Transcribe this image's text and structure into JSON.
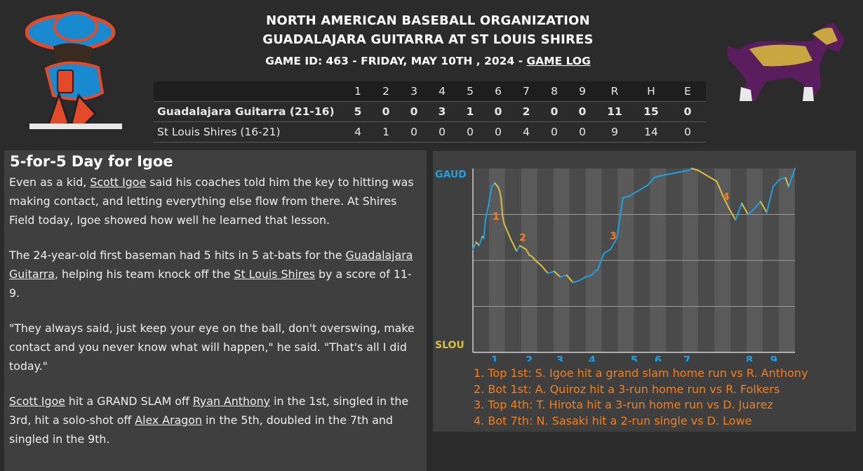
{
  "header": {
    "organization": "NORTH AMERICAN BASEBALL ORGANIZATION",
    "matchup": "GUADALAJARA GUITARRA AT ST LOUIS SHIRES",
    "game_info": "GAME ID: 463 - FRIDAY, MAY 10TH , 2024 - ",
    "game_log_link": "GAME LOG"
  },
  "linescore": {
    "columns": [
      "1",
      "2",
      "3",
      "4",
      "5",
      "6",
      "7",
      "8",
      "9",
      "R",
      "H",
      "E"
    ],
    "teams": [
      {
        "name": "Guadalajara Guitarra (21-16)",
        "scores": [
          "5",
          "0",
          "0",
          "3",
          "1",
          "0",
          "2",
          "0",
          "0",
          "11",
          "15",
          "0"
        ]
      },
      {
        "name": "St Louis Shires (16-21)",
        "scores": [
          "4",
          "1",
          "0",
          "0",
          "0",
          "0",
          "4",
          "0",
          "0",
          "9",
          "14",
          "0"
        ]
      }
    ]
  },
  "story": {
    "headline": "5-for-5 Day for Igoe",
    "p1": {
      "a": "Even as a kid, ",
      "link": "Scott Igoe",
      "b": " said his coaches told him the key to hitting was making contact, and letting everything else flow from there. At Shires Field today, Igoe showed how well he learned that lesson."
    },
    "p2": {
      "a": "The 24-year-old first baseman had 5 hits in 5 at-bats for the ",
      "link1": "Guadalajara Guitarra",
      "b": ", helping his team knock off the ",
      "link2": "St Louis Shires",
      "c": " by a score of 11-9."
    },
    "p3": "\"They always said, just keep your eye on the ball, don't overswing, make contact and you never know what will happen,\" he said. \"That's all I did today.\"",
    "p4": {
      "link1": "Scott Igoe",
      "a": " hit a GRAND SLAM off ",
      "link2": "Ryan Anthony",
      "b": " in the 1st, singled in the 3rd, hit a solo-shot off ",
      "link3": "Alex Aragon",
      "c": " in the 5th, doubled in the 7th and singled in the 9th."
    }
  },
  "chart": {
    "top_label": "GAUD",
    "bottom_label": "SLOU",
    "inning_labels": [
      "1",
      "2",
      "3",
      "4",
      "5",
      "6",
      "7",
      "8",
      "9"
    ],
    "colors": {
      "away": "#1ea0e0",
      "home": "#d8c040",
      "event": "#f08020"
    },
    "event_markers": [
      "1",
      "2",
      "3",
      "4"
    ],
    "events": [
      "1. Top 1st: S. Igoe hit a grand slam home run vs R. Anthony",
      "2. Bot 1st: A. Quiroz hit a 3-run home run vs R. Folkers",
      "3. Top 4th: T. Hirota hit a 3-run home run vs D. Juarez",
      "4. Bot 7th: N. Sasaki hit a 2-run single vs D. Lowe"
    ]
  },
  "chart_data": {
    "type": "line",
    "title": "",
    "ylabel": "",
    "x_labels": [
      "1",
      "2",
      "3",
      "4",
      "5",
      "6",
      "7",
      "8",
      "9"
    ],
    "y_top_label": "GAUD",
    "y_bottom_label": "SLOU",
    "ylim": [
      0,
      1
    ],
    "series": [
      {
        "x": [
          0,
          0.1,
          0.2,
          0.3,
          0.35,
          0.4,
          0.5,
          0.6,
          0.7,
          0.75,
          0.8,
          0.85,
          0.9,
          0.95,
          1.0,
          1.2,
          1.4,
          1.5,
          1.6,
          1.7,
          1.8,
          1.9,
          2.0,
          2.2,
          2.4,
          2.6,
          2.8,
          3.0,
          3.2,
          3.4,
          3.6,
          3.8,
          3.9,
          4.0,
          4.1,
          4.2,
          4.4,
          4.6,
          4.8,
          5.0,
          5.3,
          5.6,
          5.8,
          6.0,
          6.3,
          6.6,
          6.9,
          7.0,
          7.2,
          7.4,
          7.6,
          7.8,
          8.0,
          8.2,
          8.4,
          8.6,
          8.8,
          9.0,
          9.2,
          9.4,
          9.6,
          9.8,
          10.0,
          10.1,
          10.3
        ],
        "y": [
          0.56,
          0.6,
          0.58,
          0.63,
          0.62,
          0.72,
          0.8,
          0.9,
          0.92,
          0.91,
          0.9,
          0.88,
          0.84,
          0.74,
          0.7,
          0.62,
          0.55,
          0.58,
          0.57,
          0.56,
          0.53,
          0.52,
          0.5,
          0.47,
          0.43,
          0.44,
          0.41,
          0.42,
          0.38,
          0.39,
          0.41,
          0.42,
          0.44,
          0.45,
          0.5,
          0.54,
          0.56,
          0.62,
          0.84,
          0.85,
          0.88,
          0.91,
          0.95,
          0.96,
          0.97,
          0.98,
          0.99,
          1.0,
          0.99,
          0.97,
          0.95,
          0.93,
          0.85,
          0.78,
          0.72,
          0.81,
          0.75,
          0.78,
          0.82,
          0.76,
          0.9,
          0.94,
          0.95,
          0.9,
          1.0
        ],
        "color_by_sign": true
      }
    ]
  }
}
